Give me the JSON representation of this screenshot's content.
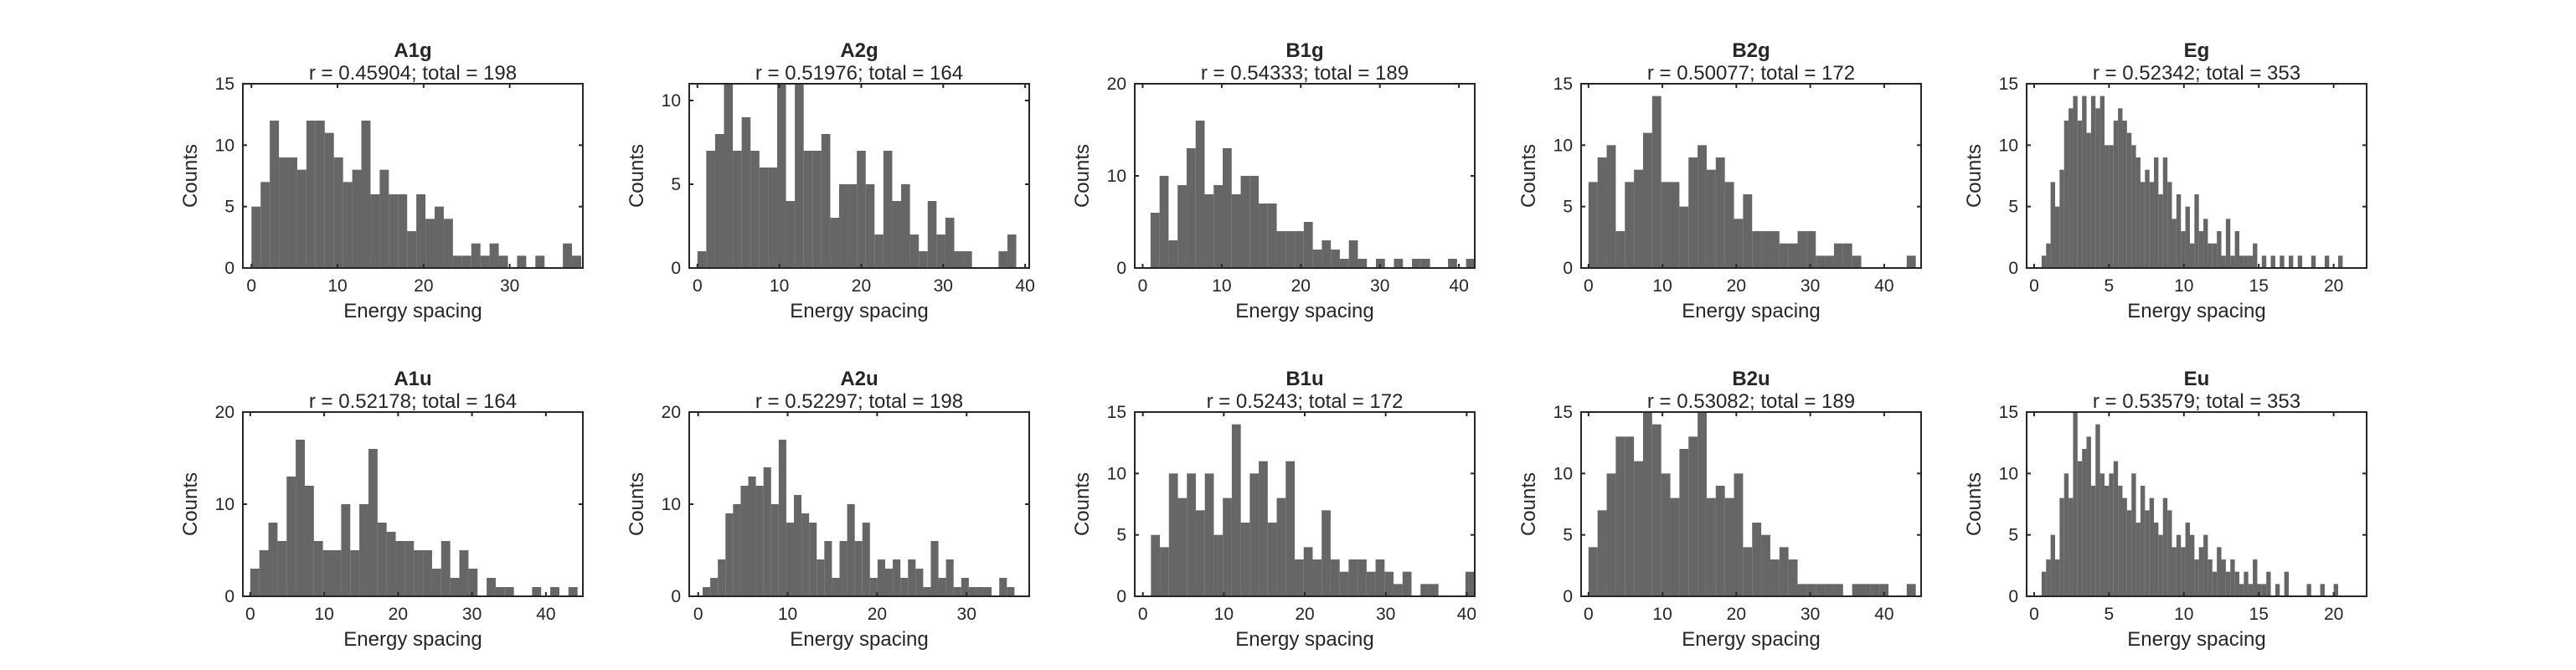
{
  "chart_data": [
    {
      "type": "bar",
      "title": "A1g",
      "subtitle": "r = 0.45904; total = 198",
      "xlabel": "Energy spacing",
      "ylabel": "Counts",
      "xlim": [
        -1,
        38.5
      ],
      "ylim": [
        0,
        15
      ],
      "xticks": [
        0,
        10,
        20,
        30
      ],
      "yticks": [
        0,
        5,
        10,
        15
      ],
      "bin_edges": [
        0,
        1.064,
        2.128,
        3.192,
        4.256,
        5.32,
        6.384,
        7.448,
        8.512,
        9.576,
        10.64,
        11.704,
        12.768,
        13.832,
        14.896,
        15.96,
        17.024,
        18.088,
        19.152,
        20.216,
        21.28,
        22.344,
        23.408,
        24.472,
        25.536,
        26.6,
        27.664,
        28.728,
        29.792,
        30.856,
        31.92,
        32.984,
        34.048,
        35.112,
        36.176,
        37.24
      ],
      "values": [
        5,
        7,
        12,
        9,
        9,
        8,
        12,
        12,
        11,
        9,
        7,
        8,
        12,
        6,
        8,
        6,
        6,
        3,
        6,
        4,
        5,
        4,
        1,
        1,
        2,
        1,
        2,
        1,
        0,
        1,
        0,
        1,
        0,
        0,
        2,
        1
      ]
    },
    {
      "type": "bar",
      "title": "A2g",
      "subtitle": "r = 0.51976; total = 164",
      "xlabel": "Energy spacing",
      "ylabel": "Counts",
      "xlim": [
        -1,
        40.5
      ],
      "ylim": [
        0,
        11
      ],
      "xticks": [
        0,
        10,
        20,
        30,
        40
      ],
      "yticks": [
        0,
        5,
        10
      ],
      "bin_edges": [
        0,
        1.081,
        2.162,
        3.243,
        4.324,
        5.405,
        6.486,
        7.567,
        8.648,
        9.729,
        10.81,
        11.891,
        12.972,
        14.053,
        15.134,
        16.215,
        17.296,
        18.377,
        19.458,
        20.539,
        21.62,
        22.701,
        23.782,
        24.863,
        25.944,
        27.025,
        28.106,
        29.187,
        30.268,
        31.349,
        32.43,
        33.511,
        34.592,
        35.673,
        36.754,
        37.835
      ],
      "values": [
        1,
        7,
        8,
        11,
        7,
        9,
        7,
        6,
        6,
        11,
        4,
        11,
        7,
        7,
        8,
        3,
        5,
        5,
        7,
        5,
        2,
        7,
        4,
        5,
        2,
        1,
        4,
        2,
        3,
        1,
        1,
        0,
        0,
        0,
        1,
        2
      ]
    },
    {
      "type": "bar",
      "title": "B1g",
      "subtitle": "r = 0.54333; total = 189",
      "xlabel": "Energy spacing",
      "ylabel": "Counts",
      "xlim": [
        -1,
        42
      ],
      "ylim": [
        0,
        20
      ],
      "xticks": [
        0,
        10,
        20,
        30,
        40
      ],
      "yticks": [
        0,
        10,
        20
      ],
      "bin_edges": [
        1,
        2.14,
        3.28,
        4.42,
        5.56,
        6.7,
        7.84,
        8.98,
        10.12,
        11.26,
        12.4,
        13.54,
        14.68,
        15.82,
        16.96,
        18.1,
        19.24,
        20.38,
        21.52,
        22.66,
        23.8,
        24.94,
        26.08,
        27.22,
        28.36,
        29.5,
        30.64,
        31.78,
        32.92,
        34.06,
        35.2,
        36.34,
        37.48,
        38.62,
        39.76,
        40.9
      ],
      "values": [
        6,
        10,
        3,
        9,
        13,
        16,
        8,
        9,
        13,
        8,
        10,
        10,
        7,
        7,
        4,
        4,
        4,
        5,
        2,
        3,
        2,
        1,
        3,
        1,
        0,
        1,
        0,
        1,
        0,
        1,
        1,
        0,
        0,
        1,
        0,
        1
      ]
    },
    {
      "type": "bar",
      "title": "B2g",
      "subtitle": "r = 0.50077; total = 172",
      "xlabel": "Energy spacing",
      "ylabel": "Counts",
      "xlim": [
        -1,
        45
      ],
      "ylim": [
        0,
        15
      ],
      "xticks": [
        0,
        10,
        20,
        30,
        40
      ],
      "yticks": [
        0,
        5,
        10,
        15
      ],
      "bin_edges": [
        0,
        1.23,
        2.46,
        3.69,
        4.92,
        6.15,
        7.38,
        8.61,
        9.84,
        11.07,
        12.3,
        13.53,
        14.76,
        15.99,
        17.22,
        18.45,
        19.68,
        20.91,
        22.14,
        23.37,
        24.6,
        25.83,
        27.06,
        28.29,
        29.52,
        30.75,
        31.98,
        33.21,
        34.44,
        35.67,
        36.9,
        38.13,
        39.36,
        40.59,
        41.82,
        43.05,
        44.28
      ],
      "values": [
        7,
        9,
        10,
        3,
        7,
        8,
        11,
        14,
        7,
        7,
        5,
        9,
        10,
        8,
        9,
        7,
        4,
        6,
        3,
        3,
        3,
        2,
        2,
        3,
        3,
        1,
        1,
        2,
        2,
        1,
        0,
        0,
        0,
        0,
        0,
        1
      ]
    },
    {
      "type": "bar",
      "title": "Eg",
      "subtitle": "r = 0.52342; total = 353",
      "xlabel": "Energy spacing",
      "ylabel": "Counts",
      "xlim": [
        -0.5,
        22.2
      ],
      "ylim": [
        0,
        15
      ],
      "xticks": [
        0,
        5,
        10,
        15,
        20
      ],
      "yticks": [
        0,
        5,
        10,
        15
      ],
      "bin_edges": [
        0.5,
        0.8,
        1.1,
        1.4,
        1.7,
        2,
        2.3,
        2.6,
        2.9,
        3.2,
        3.5,
        3.8,
        4.1,
        4.4,
        4.7,
        5,
        5.3,
        5.6,
        5.9,
        6.2,
        6.5,
        6.8,
        7.1,
        7.4,
        7.7,
        8,
        8.3,
        8.6,
        8.9,
        9.2,
        9.5,
        9.8,
        10.1,
        10.4,
        10.7,
        11,
        11.3,
        11.6,
        11.9,
        12.2,
        12.5,
        12.8,
        13.1,
        13.4,
        13.7,
        14,
        14.3,
        14.6,
        14.9,
        15.2,
        15.5,
        15.8,
        16.1,
        16.4,
        16.7,
        17,
        17.3,
        17.6,
        17.9,
        18.2,
        18.5,
        18.8,
        19.1,
        19.4,
        19.7,
        20,
        20.3,
        20.6,
        20.9,
        21.2
      ],
      "values": [
        1,
        2,
        7,
        5,
        8,
        12,
        13,
        14,
        12,
        14,
        11,
        14,
        13,
        14,
        10,
        10,
        12,
        13,
        12,
        11,
        10,
        9,
        7,
        8,
        7,
        9,
        6,
        9,
        7,
        4,
        6,
        3,
        5,
        2,
        6,
        3,
        4,
        2,
        2,
        3,
        1,
        4,
        1,
        3,
        1,
        1,
        1,
        2,
        0,
        1,
        0,
        1,
        0,
        1,
        0,
        1,
        0,
        1,
        0,
        0,
        1,
        0,
        0,
        1,
        0,
        0,
        1,
        0,
        0
      ]
    },
    {
      "type": "bar",
      "title": "A1u",
      "subtitle": "r = 0.52178; total = 164",
      "xlabel": "Energy spacing",
      "ylabel": "Counts",
      "xlim": [
        -1,
        45
      ],
      "ylim": [
        0,
        20
      ],
      "xticks": [
        0,
        10,
        20,
        30,
        40
      ],
      "yticks": [
        0,
        10,
        20
      ],
      "bin_edges": [
        0,
        1.23,
        2.46,
        3.69,
        4.92,
        6.15,
        7.38,
        8.61,
        9.84,
        11.07,
        12.3,
        13.53,
        14.76,
        15.99,
        17.22,
        18.45,
        19.68,
        20.91,
        22.14,
        23.37,
        24.6,
        25.83,
        27.06,
        28.29,
        29.52,
        30.75,
        31.98,
        33.21,
        34.44,
        35.67,
        36.9,
        38.13,
        39.36,
        40.59,
        41.82,
        43.05,
        44.28
      ],
      "values": [
        3,
        5,
        8,
        6,
        13,
        17,
        12,
        6,
        5,
        5,
        10,
        5,
        10,
        16,
        8,
        7,
        6,
        6,
        5,
        5,
        3,
        6,
        2,
        5,
        3,
        0,
        2,
        1,
        1,
        0,
        0,
        1,
        0,
        1,
        0,
        1
      ]
    },
    {
      "type": "bar",
      "title": "A2u",
      "subtitle": "r = 0.52297; total = 198",
      "xlabel": "Energy spacing",
      "ylabel": "Counts",
      "xlim": [
        -1,
        37
      ],
      "ylim": [
        0,
        20
      ],
      "xticks": [
        0,
        10,
        20,
        30
      ],
      "yticks": [
        0,
        10,
        20
      ],
      "bin_edges": [
        0.5,
        1.35,
        2.2,
        3.05,
        3.9,
        4.75,
        5.6,
        6.45,
        7.3,
        8.15,
        9,
        9.85,
        10.7,
        11.55,
        12.4,
        13.25,
        14.1,
        14.95,
        15.8,
        16.65,
        17.5,
        18.35,
        19.2,
        20.05,
        20.9,
        21.75,
        22.6,
        23.45,
        24.3,
        25.15,
        26,
        26.85,
        27.7,
        28.55,
        29.4,
        30.25,
        31.1,
        31.95,
        32.8,
        33.65,
        34.5,
        35.35
      ],
      "values": [
        1,
        2,
        4,
        9,
        10,
        12,
        13,
        12,
        14,
        10,
        17,
        8,
        11,
        9,
        8,
        4,
        6,
        2,
        6,
        10,
        6,
        8,
        2,
        4,
        3,
        4,
        2,
        4,
        3,
        1,
        6,
        2,
        4,
        1,
        2,
        1,
        1,
        1,
        0,
        2,
        1
      ]
    },
    {
      "type": "bar",
      "title": "B1u",
      "subtitle": "r = 0.5243; total = 172",
      "xlabel": "Energy spacing",
      "ylabel": "Counts",
      "xlim": [
        -1,
        41
      ],
      "ylim": [
        0,
        15
      ],
      "xticks": [
        0,
        10,
        20,
        30,
        40
      ],
      "yticks": [
        0,
        5,
        10,
        15
      ],
      "bin_edges": [
        1,
        2.11,
        3.22,
        4.33,
        5.44,
        6.55,
        7.66,
        8.77,
        9.88,
        10.99,
        12.1,
        13.21,
        14.32,
        15.43,
        16.54,
        17.65,
        18.76,
        19.87,
        20.98,
        22.09,
        23.2,
        24.31,
        25.42,
        26.53,
        27.64,
        28.75,
        29.86,
        30.97,
        32.08,
        33.19,
        34.3,
        35.41,
        36.52,
        37.63,
        38.74,
        39.85
      ],
      "values": [
        5,
        4,
        10,
        8,
        10,
        7,
        10,
        5,
        8,
        14,
        6,
        10,
        11,
        6,
        8,
        11,
        3,
        4,
        3,
        7,
        3,
        2,
        3,
        3,
        2,
        3,
        2,
        1,
        2,
        0,
        1,
        1,
        0,
        0,
        0,
        2
      ]
    },
    {
      "type": "bar",
      "title": "B2u",
      "subtitle": "r = 0.53082; total = 189",
      "xlabel": "Energy spacing",
      "ylabel": "Counts",
      "xlim": [
        -1,
        45
      ],
      "ylim": [
        0,
        15
      ],
      "xticks": [
        0,
        10,
        20,
        30,
        40
      ],
      "yticks": [
        0,
        5,
        10,
        15
      ],
      "bin_edges": [
        0,
        1.23,
        2.46,
        3.69,
        4.92,
        6.15,
        7.38,
        8.61,
        9.84,
        11.07,
        12.3,
        13.53,
        14.76,
        15.99,
        17.22,
        18.45,
        19.68,
        20.91,
        22.14,
        23.37,
        24.6,
        25.83,
        27.06,
        28.29,
        29.52,
        30.75,
        31.98,
        33.21,
        34.44,
        35.67,
        36.9,
        38.13,
        39.36,
        40.59,
        41.82,
        43.05,
        44.28
      ],
      "values": [
        4,
        7,
        10,
        13,
        13,
        11,
        15,
        14,
        10,
        8,
        12,
        13,
        15,
        8,
        9,
        8,
        10,
        4,
        6,
        5,
        3,
        4,
        3,
        1,
        1,
        1,
        1,
        1,
        0,
        1,
        1,
        1,
        1,
        0,
        0,
        1
      ]
    },
    {
      "type": "bar",
      "title": "Eu",
      "subtitle": "r = 0.53579; total = 353",
      "xlabel": "Energy spacing",
      "ylabel": "Counts",
      "xlim": [
        -0.5,
        22.2
      ],
      "ylim": [
        0,
        15
      ],
      "xticks": [
        0,
        5,
        10,
        15,
        20
      ],
      "yticks": [
        0,
        5,
        10,
        15
      ],
      "bin_edges": [
        0.5,
        0.8,
        1.1,
        1.4,
        1.7,
        2,
        2.3,
        2.6,
        2.9,
        3.2,
        3.5,
        3.8,
        4.1,
        4.4,
        4.7,
        5,
        5.3,
        5.6,
        5.9,
        6.2,
        6.5,
        6.8,
        7.1,
        7.4,
        7.7,
        8,
        8.3,
        8.6,
        8.9,
        9.2,
        9.5,
        9.8,
        10.1,
        10.4,
        10.7,
        11,
        11.3,
        11.6,
        11.9,
        12.2,
        12.5,
        12.8,
        13.1,
        13.4,
        13.7,
        14,
        14.3,
        14.6,
        14.9,
        15.2,
        15.5,
        15.8,
        16.1,
        16.4,
        16.7,
        17,
        17.3,
        17.6,
        17.9,
        18.2,
        18.5,
        18.8,
        19.1,
        19.4,
        19.7,
        20,
        20.3,
        20.6,
        20.9
      ],
      "values": [
        2,
        3,
        5,
        3,
        8,
        10,
        8,
        15,
        11,
        12,
        13,
        9,
        14,
        10,
        9,
        10,
        11,
        9,
        8,
        7,
        10,
        6,
        9,
        7,
        8,
        6,
        5,
        8,
        7,
        4,
        5,
        4,
        6,
        5,
        3,
        4,
        5,
        3,
        2,
        4,
        3,
        2,
        3,
        2,
        1,
        2,
        1,
        3,
        1,
        1,
        2,
        0,
        1,
        0,
        2,
        0,
        0,
        0,
        0,
        1,
        0,
        0,
        1,
        0,
        0,
        1,
        0,
        0
      ]
    }
  ]
}
